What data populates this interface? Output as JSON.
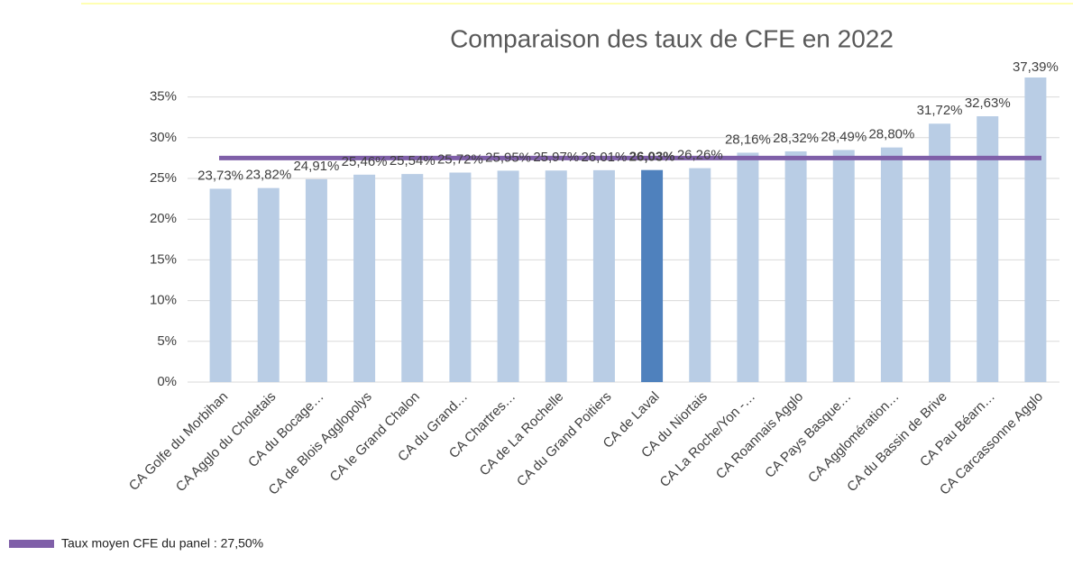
{
  "chart_data": {
    "type": "bar",
    "title": "Comparaison des taux de CFE en 2022",
    "categories": [
      "CA Golfe du Morbihan",
      "CA Agglo du Choletais",
      "CA du Bocage…",
      "CA de Blois Agglopolys",
      "CA le Grand Chalon",
      "CA du Grand…",
      "CA Chartres…",
      "CA de La Rochelle",
      "CA du Grand Poitiers",
      "CA de Laval",
      "CA du Niortais",
      "CA La Roche/Yon -…",
      "CA Roannais Agglo",
      "CA Pays Basque…",
      "CA Agglomération…",
      "CA du Bassin de Brive",
      "CA Pau Béarn…",
      "CA Carcassonne Agglo"
    ],
    "values": [
      23.73,
      23.82,
      24.91,
      25.46,
      25.54,
      25.72,
      25.95,
      25.97,
      26.01,
      26.03,
      26.26,
      28.16,
      28.32,
      28.49,
      28.8,
      31.72,
      32.63,
      37.39
    ],
    "value_labels": [
      "23,73%",
      "23,82%",
      "24,91%",
      "25,46%",
      "25,54%",
      "25,72%",
      "25,95%",
      "25,97%",
      "26,01%",
      "26,03%",
      "26,26%",
      "28,16%",
      "28,32%",
      "28,49%",
      "28,80%",
      "31,72%",
      "32,63%",
      "37,39%"
    ],
    "colors": [
      "#b9cde5",
      "#b9cde5",
      "#b9cde5",
      "#b9cde5",
      "#b9cde5",
      "#b9cde5",
      "#b9cde5",
      "#b9cde5",
      "#b9cde5",
      "#4f81bd",
      "#b9cde5",
      "#b9cde5",
      "#b9cde5",
      "#b9cde5",
      "#b9cde5",
      "#b9cde5",
      "#b9cde5",
      "#b9cde5"
    ],
    "average": {
      "name": "Taux moyen CFE du panel : 27,50%",
      "value": 27.5,
      "color": "#7f5fa8"
    },
    "ylim": [
      0,
      37.5
    ],
    "yticks": [
      {
        "value": 0,
        "label": "0%"
      },
      {
        "value": 5,
        "label": "5%"
      },
      {
        "value": 10,
        "label": "10%"
      },
      {
        "value": 15,
        "label": "15%"
      },
      {
        "value": 20,
        "label": "20%"
      },
      {
        "value": 25,
        "label": "25%"
      },
      {
        "value": 30,
        "label": "30%"
      },
      {
        "value": 35,
        "label": "35%"
      }
    ],
    "grid": true
  }
}
